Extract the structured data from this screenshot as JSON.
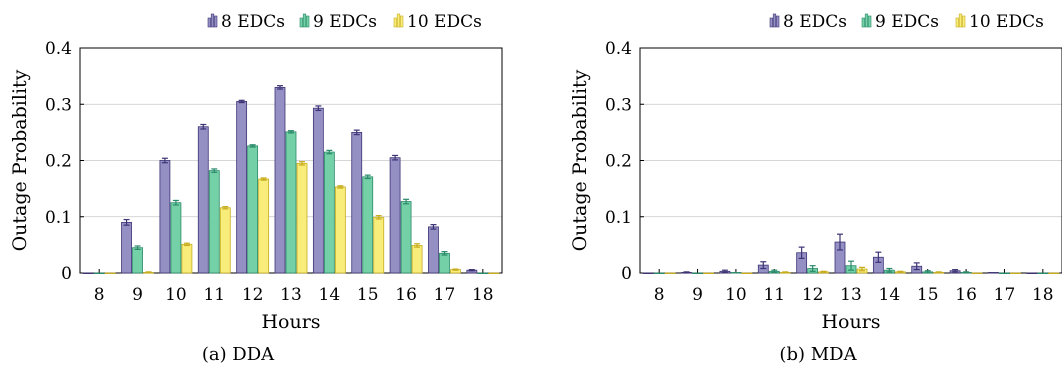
{
  "colors": {
    "s8": "#9490c4",
    "s9": "#74d0a6",
    "s10": "#f8ec7a",
    "s8_edge": "#3d3475",
    "s9_edge": "#2a8a6a",
    "s10_edge": "#c7ad1f",
    "grid": "#c8c8c8"
  },
  "chart_data": [
    {
      "type": "bar",
      "caption": "(a) DDA",
      "xlabel": "Hours",
      "ylabel": "Outage Probability",
      "ylim": [
        0,
        0.4
      ],
      "yticks": [
        "0",
        "0.1",
        "0.2",
        "0.3",
        "0.4"
      ],
      "categories": [
        "8",
        "9",
        "10",
        "11",
        "12",
        "13",
        "14",
        "15",
        "16",
        "17",
        "18"
      ],
      "grid": true,
      "legend_position": "top-right",
      "series": [
        {
          "name": "8 EDCs",
          "values": [
            0,
            0.09,
            0.2,
            0.26,
            0.305,
            0.33,
            0.293,
            0.25,
            0.205,
            0.082,
            0.005
          ],
          "errors": [
            0,
            0.005,
            0.004,
            0.004,
            0.002,
            0.003,
            0.004,
            0.004,
            0.004,
            0.004,
            0.001
          ]
        },
        {
          "name": "9 EDCs",
          "values": [
            0,
            0.045,
            0.125,
            0.182,
            0.226,
            0.251,
            0.215,
            0.171,
            0.127,
            0.035,
            0
          ],
          "errors": [
            0,
            0.003,
            0.004,
            0.003,
            0.002,
            0.002,
            0.003,
            0.003,
            0.004,
            0.003,
            0
          ]
        },
        {
          "name": "10 EDCs",
          "values": [
            0,
            0.001,
            0.051,
            0.116,
            0.167,
            0.195,
            0.153,
            0.099,
            0.049,
            0.006,
            0
          ],
          "errors": [
            0,
            0.001,
            0.002,
            0.002,
            0.002,
            0.003,
            0.002,
            0.003,
            0.003,
            0.001,
            0
          ]
        }
      ]
    },
    {
      "type": "bar",
      "caption": "(b) MDA",
      "xlabel": "Hours",
      "ylabel": "Outage Probability",
      "ylim": [
        0,
        0.4
      ],
      "yticks": [
        "0",
        "0.1",
        "0.2",
        "0.3",
        "0.4"
      ],
      "categories": [
        "8",
        "9",
        "10",
        "11",
        "12",
        "13",
        "14",
        "15",
        "16",
        "17",
        "18"
      ],
      "grid": true,
      "legend_position": "top-right",
      "series": [
        {
          "name": "8 EDCs",
          "values": [
            0,
            0.001,
            0.003,
            0.014,
            0.036,
            0.055,
            0.028,
            0.012,
            0.004,
            0.001,
            0
          ],
          "errors": [
            0,
            0.001,
            0.002,
            0.006,
            0.01,
            0.014,
            0.009,
            0.006,
            0.002,
            0,
            0
          ]
        },
        {
          "name": "9 EDCs",
          "values": [
            0,
            0,
            0.001,
            0.003,
            0.008,
            0.013,
            0.005,
            0.002,
            0.001,
            0,
            0
          ],
          "errors": [
            0,
            0,
            0,
            0.002,
            0.005,
            0.008,
            0.003,
            0.002,
            0.001,
            0,
            0
          ]
        },
        {
          "name": "10 EDCs",
          "values": [
            0,
            0,
            0,
            0.001,
            0.002,
            0.007,
            0.002,
            0.001,
            0,
            0,
            0
          ],
          "errors": [
            0,
            0,
            0,
            0.001,
            0.001,
            0.003,
            0.001,
            0.001,
            0,
            0,
            0
          ]
        }
      ]
    }
  ]
}
